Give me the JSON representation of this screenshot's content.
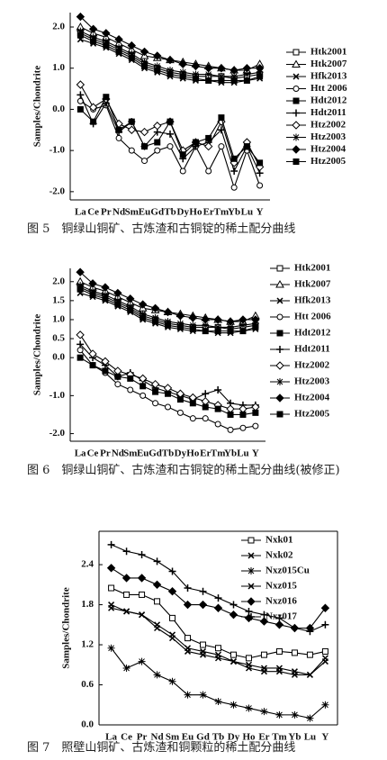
{
  "chart_data": [
    {
      "type": "line",
      "caption": "图 5　铜绿山铜矿、古炼渣和古铜锭的稀土配分曲线",
      "ylabel": "Samples/Chondrite",
      "categories": [
        "La",
        "Ce",
        "Pr",
        "Nd",
        "Sm",
        "Eu",
        "Gd",
        "Tb",
        "Dy",
        "Ho",
        "Er",
        "Tm",
        "Yb",
        "Lu",
        "Y"
      ],
      "ylim": [
        -2.2,
        2.35
      ],
      "yticks": [
        {
          "value": -2,
          "label": "-2.0"
        },
        {
          "value": -1,
          "label": "-1.0"
        },
        {
          "value": 0,
          "label": "0.0"
        },
        {
          "value": 1,
          "label": "1.0"
        },
        {
          "value": 2,
          "label": "2.0"
        }
      ],
      "legend": "right",
      "series": [
        {
          "name": "Htk2001",
          "color": "#000",
          "marker": "square-open",
          "values": [
            1.85,
            1.7,
            1.6,
            1.45,
            1.3,
            1.1,
            1.0,
            0.9,
            0.85,
            0.8,
            0.8,
            0.8,
            0.75,
            0.8,
            0.85
          ]
        },
        {
          "name": "Htk2007",
          "color": "#000",
          "marker": "triangle-open",
          "values": [
            2.0,
            1.85,
            1.75,
            1.6,
            1.45,
            1.3,
            1.25,
            1.2,
            1.15,
            1.1,
            1.05,
            1.0,
            0.95,
            0.95,
            1.1
          ]
        },
        {
          "name": "Hfk2013",
          "color": "#000",
          "marker": "x",
          "values": [
            1.7,
            1.6,
            1.5,
            1.35,
            1.2,
            1.0,
            0.9,
            0.8,
            0.75,
            0.7,
            0.7,
            0.65,
            0.65,
            0.7,
            0.75
          ]
        },
        {
          "name": "Htt 2006",
          "color": "#000",
          "marker": "circle-open",
          "values": [
            0.2,
            0.0,
            0.1,
            -0.7,
            -1.0,
            -1.25,
            -1.0,
            -0.9,
            -1.5,
            -0.9,
            -1.5,
            -0.9,
            -1.9,
            -1.0,
            -1.85
          ]
        },
        {
          "name": "Hdt2012",
          "color": "#000",
          "marker": "square-filled",
          "values": [
            1.8,
            1.65,
            1.55,
            1.4,
            1.25,
            1.05,
            0.95,
            0.85,
            0.8,
            0.75,
            0.7,
            0.7,
            0.7,
            0.7,
            0.8
          ]
        },
        {
          "name": "Hdt2011",
          "color": "#000",
          "marker": "plus",
          "values": [
            0.35,
            -0.35,
            0.15,
            -0.55,
            -0.3,
            -0.9,
            -0.55,
            -0.6,
            -1.2,
            -0.9,
            -0.8,
            -0.5,
            -1.5,
            -0.9,
            -1.55
          ]
        },
        {
          "name": "Htz2002",
          "color": "#000",
          "marker": "diamond-open",
          "values": [
            0.6,
            0.05,
            0.25,
            -0.35,
            -0.5,
            -0.55,
            -0.4,
            -0.3,
            -1.0,
            -0.8,
            -0.9,
            -0.3,
            -1.3,
            -0.8,
            -1.4
          ]
        },
        {
          "name": "Htz2003",
          "color": "#000",
          "marker": "star",
          "values": [
            1.9,
            1.75,
            1.65,
            1.5,
            1.35,
            1.15,
            1.05,
            0.95,
            0.9,
            0.85,
            0.85,
            0.8,
            0.8,
            0.85,
            0.9
          ]
        },
        {
          "name": "Htz2004",
          "color": "#000",
          "marker": "diamond-filled",
          "values": [
            2.25,
            1.95,
            1.85,
            1.7,
            1.55,
            1.4,
            1.3,
            1.2,
            1.1,
            1.05,
            1.0,
            1.0,
            0.95,
            1.0,
            1.0
          ]
        },
        {
          "name": "Htz2005",
          "color": "#000",
          "marker": "square-filled",
          "values": [
            0.0,
            -0.3,
            0.3,
            -0.5,
            -0.3,
            -0.9,
            -0.8,
            -0.3,
            -1.1,
            -0.8,
            -0.7,
            -0.2,
            -1.2,
            -0.9,
            -1.3
          ]
        }
      ]
    },
    {
      "type": "line",
      "caption": "图 6　铜绿山铜矿、古炼渣和古铜锭的稀土配分曲线(被修正)",
      "ylabel": "Samples/Chondrite",
      "categories": [
        "La",
        "Ce",
        "Pr",
        "Nd",
        "Sm",
        "Eu",
        "Gd",
        "Tb",
        "Dy",
        "Ho",
        "Er",
        "Tm",
        "Yb",
        "Lu",
        "Y"
      ],
      "ylim": [
        -2.2,
        2.35
      ],
      "yticks": [
        {
          "value": -2,
          "label": "-2.0"
        },
        {
          "value": -1,
          "label": "-1.0"
        },
        {
          "value": 0,
          "label": "0.0"
        },
        {
          "value": 0.5,
          "label": "0.5"
        },
        {
          "value": 1,
          "label": "1.0"
        },
        {
          "value": 1.5,
          "label": "1.5"
        },
        {
          "value": 2,
          "label": "2.0"
        }
      ],
      "legend": "right",
      "series": [
        {
          "name": "Htk2001",
          "color": "#000",
          "marker": "square-open",
          "values": [
            1.85,
            1.7,
            1.6,
            1.45,
            1.3,
            1.1,
            1.0,
            0.9,
            0.85,
            0.8,
            0.8,
            0.8,
            0.75,
            0.8,
            0.85
          ]
        },
        {
          "name": "Htk2007",
          "color": "#000",
          "marker": "triangle-open",
          "values": [
            2.0,
            1.85,
            1.75,
            1.6,
            1.45,
            1.3,
            1.25,
            1.2,
            1.15,
            1.1,
            1.05,
            1.0,
            0.95,
            0.95,
            1.1
          ]
        },
        {
          "name": "Hfk2013",
          "color": "#000",
          "marker": "x",
          "values": [
            1.7,
            1.6,
            1.5,
            1.35,
            1.2,
            1.0,
            0.9,
            0.8,
            0.75,
            0.7,
            0.7,
            0.65,
            0.65,
            0.7,
            0.75
          ]
        },
        {
          "name": "Htt 2006",
          "color": "#000",
          "marker": "circle-open",
          "values": [
            0.2,
            -0.2,
            -0.4,
            -0.7,
            -0.85,
            -1.0,
            -1.2,
            -1.3,
            -1.45,
            -1.6,
            -1.6,
            -1.75,
            -1.9,
            -1.85,
            -1.8
          ]
        },
        {
          "name": "Hdt2012",
          "color": "#000",
          "marker": "square-filled",
          "values": [
            1.8,
            1.65,
            1.55,
            1.4,
            1.25,
            1.05,
            0.95,
            0.85,
            0.8,
            0.75,
            0.7,
            0.7,
            0.7,
            0.7,
            0.8
          ]
        },
        {
          "name": "Hdt2011",
          "color": "#000",
          "marker": "plus",
          "values": [
            0.35,
            0.0,
            -0.2,
            -0.5,
            -0.4,
            -0.6,
            -0.8,
            -0.9,
            -1.0,
            -1.1,
            -0.95,
            -0.85,
            -1.2,
            -1.25,
            -1.25
          ]
        },
        {
          "name": "Htz2002",
          "color": "#000",
          "marker": "diamond-open",
          "values": [
            0.6,
            0.1,
            -0.1,
            -0.35,
            -0.45,
            -0.55,
            -0.7,
            -0.8,
            -0.95,
            -1.05,
            -1.15,
            -1.25,
            -1.35,
            -1.35,
            -1.3
          ]
        },
        {
          "name": "Htz2003",
          "color": "#000",
          "marker": "star",
          "values": [
            1.9,
            1.75,
            1.65,
            1.5,
            1.35,
            1.15,
            1.05,
            0.95,
            0.9,
            0.85,
            0.85,
            0.8,
            0.8,
            0.85,
            0.9
          ]
        },
        {
          "name": "Htz2004",
          "color": "#000",
          "marker": "diamond-filled",
          "values": [
            2.25,
            1.95,
            1.85,
            1.7,
            1.55,
            1.4,
            1.3,
            1.2,
            1.1,
            1.05,
            1.0,
            1.0,
            0.95,
            1.0,
            1.0
          ]
        },
        {
          "name": "Htz2005",
          "color": "#000",
          "marker": "square-filled",
          "values": [
            0.0,
            -0.2,
            -0.35,
            -0.5,
            -0.55,
            -0.75,
            -0.9,
            -0.95,
            -1.1,
            -1.2,
            -1.3,
            -1.35,
            -1.5,
            -1.5,
            -1.45
          ]
        }
      ]
    },
    {
      "type": "line",
      "caption": "图 7　照壁山铜矿、古炼渣和铜颗粒的稀土配分曲线",
      "ylabel": "Samples/Chondrite",
      "categories": [
        "La",
        "Ce",
        "Pr",
        "Nd",
        "Sm",
        "Eu",
        "Gd",
        "Tb",
        "Dy",
        "Ho",
        "Er",
        "Tm",
        "Yb",
        "Lu",
        "Y"
      ],
      "ylim": [
        0,
        2.9
      ],
      "yticks": [
        {
          "value": 0,
          "label": "0.0"
        },
        {
          "value": 0.6,
          "label": "0.6"
        },
        {
          "value": 1.2,
          "label": "1.2"
        },
        {
          "value": 1.8,
          "label": "1.8"
        },
        {
          "value": 2.4,
          "label": "2.4"
        }
      ],
      "legend": "upper right",
      "series": [
        {
          "name": "Nxk01",
          "color": "#000",
          "marker": "square-open",
          "values": [
            2.05,
            1.95,
            1.95,
            1.85,
            1.6,
            1.3,
            1.2,
            1.15,
            1.05,
            1.0,
            1.05,
            1.1,
            1.08,
            1.05,
            1.1
          ]
        },
        {
          "name": "Nxk02",
          "color": "#000",
          "marker": "x",
          "values": [
            1.8,
            1.7,
            1.65,
            1.5,
            1.35,
            1.15,
            1.1,
            1.05,
            0.95,
            0.9,
            0.85,
            0.85,
            0.8,
            0.75,
            0.95
          ]
        },
        {
          "name": "Nxz015Cu",
          "color": "#000",
          "marker": "star",
          "values": [
            1.15,
            0.85,
            0.95,
            0.75,
            0.65,
            0.45,
            0.45,
            0.35,
            0.3,
            0.25,
            0.2,
            0.15,
            0.15,
            0.1,
            0.3
          ]
        },
        {
          "name": "Nxz015",
          "color": "#000",
          "marker": "x",
          "values": [
            1.75,
            1.7,
            1.65,
            1.45,
            1.3,
            1.1,
            1.05,
            1.0,
            0.95,
            0.85,
            0.8,
            0.8,
            0.75,
            0.75,
            1.0
          ]
        },
        {
          "name": "Nxz016",
          "color": "#000",
          "marker": "diamond-filled",
          "values": [
            2.35,
            2.2,
            2.2,
            2.1,
            2.0,
            1.8,
            1.8,
            1.75,
            1.65,
            1.6,
            1.55,
            1.5,
            1.45,
            1.45,
            1.75
          ]
        },
        {
          "name": "Nxz017",
          "color": "#000",
          "marker": "plus",
          "values": [
            2.7,
            2.6,
            2.55,
            2.45,
            2.3,
            2.05,
            2.0,
            1.9,
            1.8,
            1.7,
            1.65,
            1.6,
            1.45,
            1.4,
            1.5
          ]
        }
      ]
    }
  ]
}
